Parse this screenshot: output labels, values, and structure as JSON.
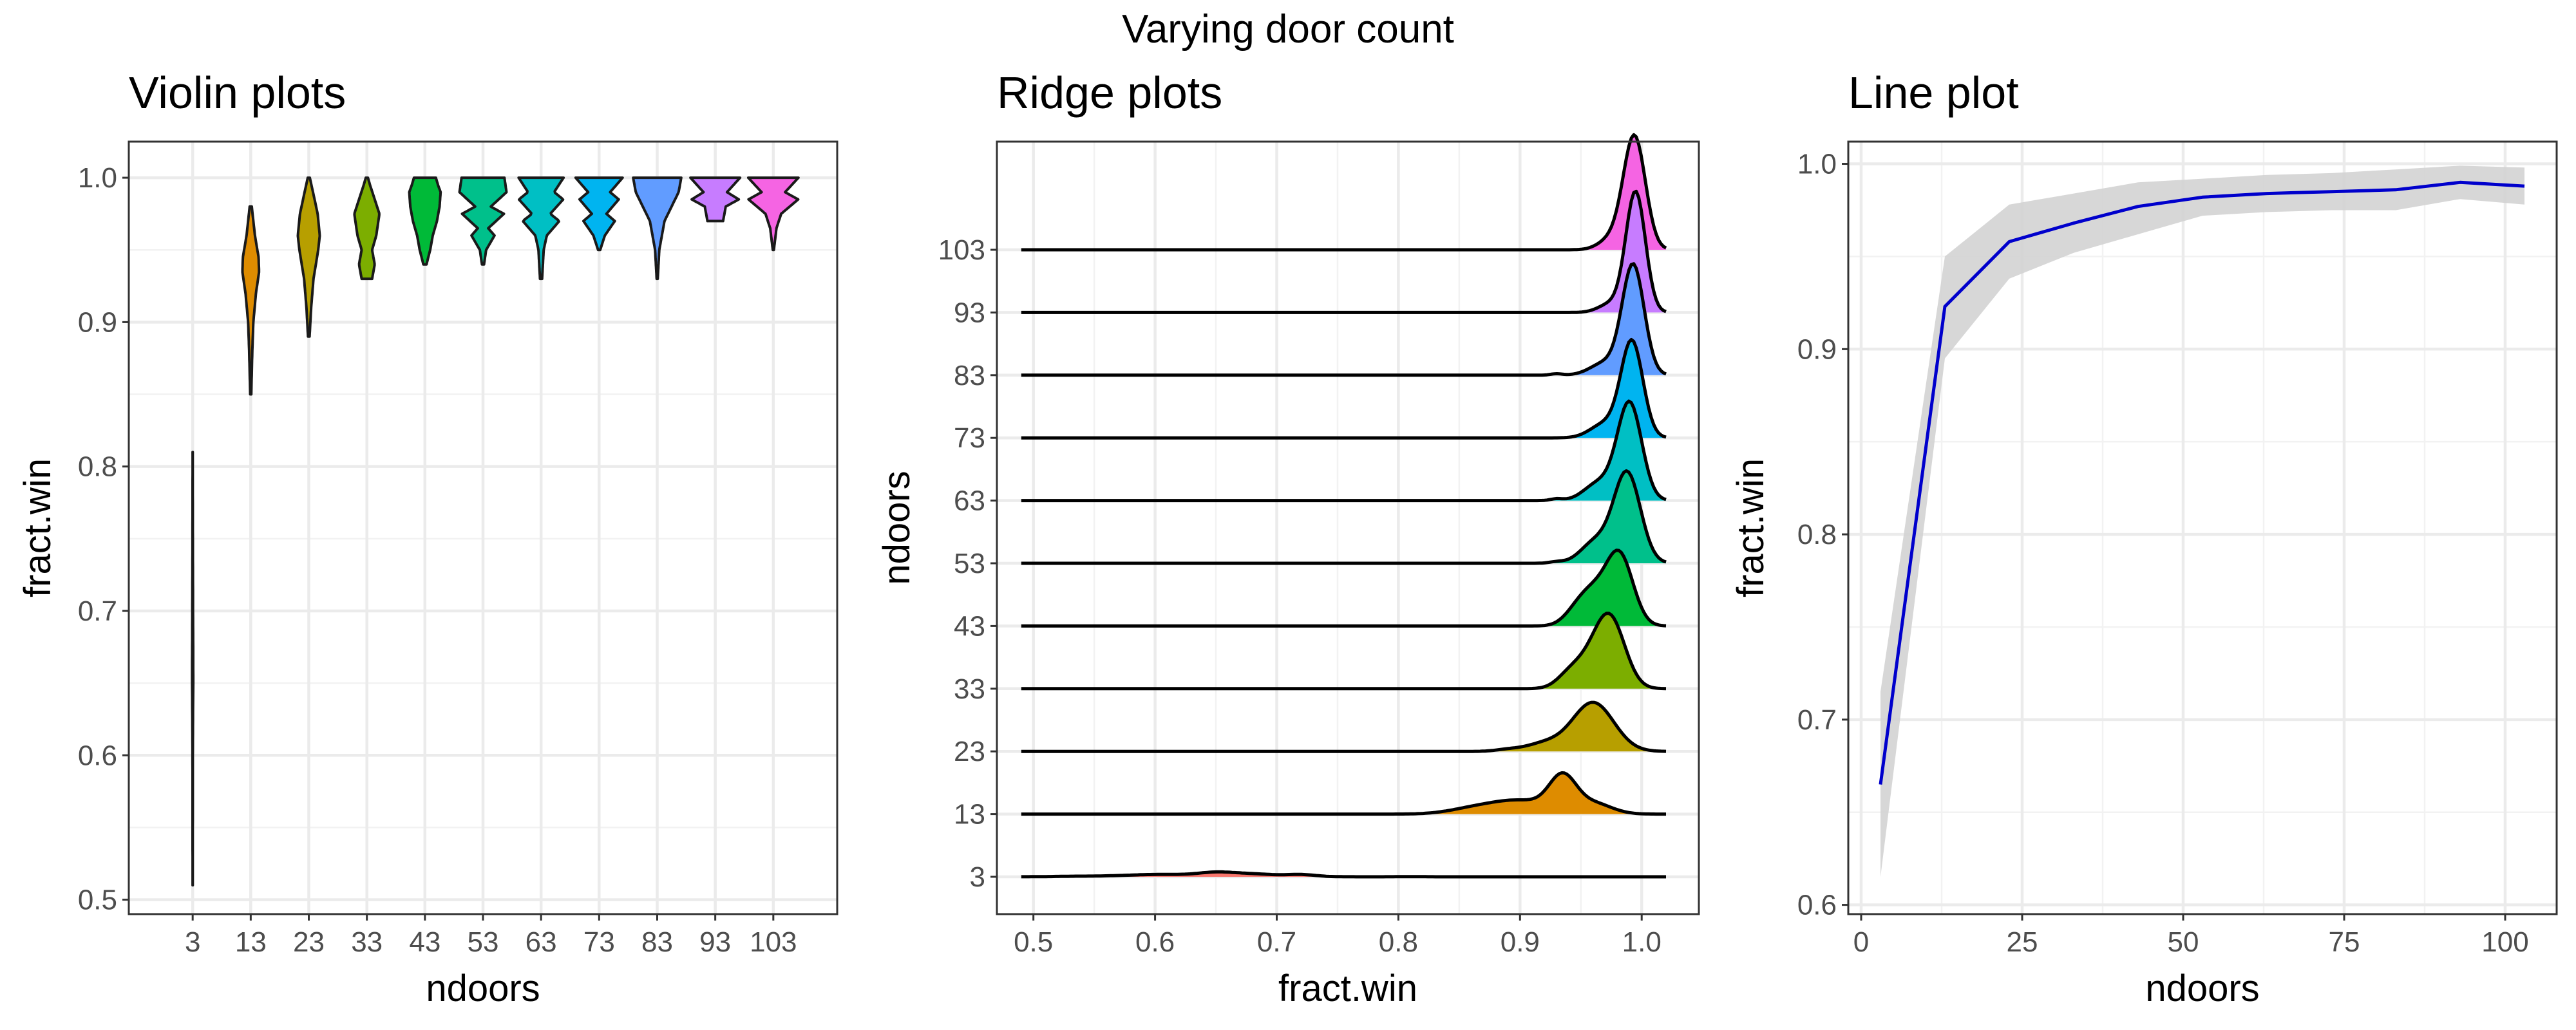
{
  "figure": {
    "title": "Varying door count",
    "panels": [
      {
        "title": "Violin plots",
        "xlabel": "ndoors",
        "ylabel": "fract.win"
      },
      {
        "title": "Ridge plots",
        "xlabel": "fract.win",
        "ylabel": "ndoors"
      },
      {
        "title": "Line plot",
        "xlabel": "ndoors",
        "ylabel": "fract.win"
      }
    ]
  },
  "chart_data": [
    {
      "type": "violin",
      "title": "Violin plots",
      "xlabel": "ndoors",
      "ylabel": "fract.win",
      "categories": [
        "3",
        "13",
        "23",
        "33",
        "43",
        "53",
        "63",
        "73",
        "83",
        "93",
        "103"
      ],
      "ylim": [
        0.49,
        1.025
      ],
      "yticks": [
        0.5,
        0.6,
        0.7,
        0.8,
        0.9,
        1.0
      ],
      "ytick_labels": [
        "0.5",
        "0.6",
        "0.7",
        "0.8",
        "0.9",
        "1.0"
      ],
      "colors": [
        "#F8766D",
        "#DE8C00",
        "#B79F00",
        "#7CAE00",
        "#00BA38",
        "#00C08B",
        "#00BFC4",
        "#00B4F0",
        "#619CFF",
        "#C77CFF",
        "#F564E3"
      ],
      "violins": [
        {
          "ndoors": "3",
          "min": 0.51,
          "max": 0.81,
          "profile": [
            [
              0.51,
              0.002
            ],
            [
              0.55,
              0.004
            ],
            [
              0.6,
              0.006
            ],
            [
              0.63,
              0.014
            ],
            [
              0.65,
              0.022
            ],
            [
              0.67,
              0.02
            ],
            [
              0.7,
              0.014
            ],
            [
              0.74,
              0.008
            ],
            [
              0.78,
              0.004
            ],
            [
              0.81,
              0.002
            ]
          ]
        },
        {
          "ndoors": "13",
          "min": 0.85,
          "max": 0.98,
          "profile": [
            [
              0.85,
              0.02
            ],
            [
              0.88,
              0.06
            ],
            [
              0.9,
              0.1
            ],
            [
              0.92,
              0.2
            ],
            [
              0.935,
              0.32
            ],
            [
              0.945,
              0.3
            ],
            [
              0.96,
              0.16
            ],
            [
              0.98,
              0.04
            ]
          ]
        },
        {
          "ndoors": "23",
          "min": 0.89,
          "max": 1.0,
          "profile": [
            [
              0.89,
              0.03
            ],
            [
              0.91,
              0.09
            ],
            [
              0.93,
              0.18
            ],
            [
              0.95,
              0.36
            ],
            [
              0.96,
              0.42
            ],
            [
              0.975,
              0.34
            ],
            [
              0.99,
              0.16
            ],
            [
              1.0,
              0.04
            ]
          ]
        },
        {
          "ndoors": "33",
          "min": 0.93,
          "max": 1.0,
          "profile": [
            [
              0.93,
              0.2
            ],
            [
              0.94,
              0.3
            ],
            [
              0.95,
              0.2
            ],
            [
              0.96,
              0.36
            ],
            [
              0.975,
              0.48
            ],
            [
              0.985,
              0.3
            ],
            [
              0.995,
              0.12
            ],
            [
              1.0,
              0.04
            ]
          ]
        },
        {
          "ndoors": "43",
          "min": 0.94,
          "max": 1.0,
          "profile": [
            [
              0.94,
              0.06
            ],
            [
              0.95,
              0.2
            ],
            [
              0.96,
              0.3
            ],
            [
              0.97,
              0.46
            ],
            [
              0.98,
              0.56
            ],
            [
              0.99,
              0.6
            ],
            [
              0.995,
              0.5
            ],
            [
              1.0,
              0.42
            ]
          ]
        },
        {
          "ndoors": "53",
          "min": 0.94,
          "max": 1.0,
          "profile": [
            [
              0.94,
              0.04
            ],
            [
              0.95,
              0.12
            ],
            [
              0.96,
              0.44
            ],
            [
              0.965,
              0.2
            ],
            [
              0.975,
              0.8
            ],
            [
              0.98,
              0.3
            ],
            [
              0.99,
              0.9
            ],
            [
              1.0,
              0.82
            ]
          ]
        },
        {
          "ndoors": "63",
          "min": 0.93,
          "max": 1.0,
          "profile": [
            [
              0.93,
              0.04
            ],
            [
              0.95,
              0.1
            ],
            [
              0.96,
              0.22
            ],
            [
              0.97,
              0.7
            ],
            [
              0.975,
              0.35
            ],
            [
              0.985,
              0.85
            ],
            [
              0.99,
              0.5
            ],
            [
              1.0,
              0.86
            ]
          ]
        },
        {
          "ndoors": "73",
          "min": 0.95,
          "max": 1.0,
          "profile": [
            [
              0.95,
              0.04
            ],
            [
              0.96,
              0.22
            ],
            [
              0.97,
              0.6
            ],
            [
              0.975,
              0.28
            ],
            [
              0.985,
              0.75
            ],
            [
              0.99,
              0.42
            ],
            [
              1.0,
              0.9
            ]
          ]
        },
        {
          "ndoors": "83",
          "min": 0.93,
          "max": 1.0,
          "profile": [
            [
              0.93,
              0.02
            ],
            [
              0.95,
              0.08
            ],
            [
              0.97,
              0.28
            ],
            [
              0.98,
              0.55
            ],
            [
              0.99,
              0.82
            ],
            [
              1.0,
              0.92
            ]
          ]
        },
        {
          "ndoors": "93",
          "min": 0.97,
          "max": 1.0,
          "profile": [
            [
              0.97,
              0.3
            ],
            [
              0.98,
              0.4
            ],
            [
              0.985,
              0.9
            ],
            [
              0.99,
              0.45
            ],
            [
              1.0,
              0.95
            ]
          ]
        },
        {
          "ndoors": "103",
          "min": 0.95,
          "max": 1.0,
          "profile": [
            [
              0.95,
              0.02
            ],
            [
              0.965,
              0.12
            ],
            [
              0.975,
              0.3
            ],
            [
              0.985,
              0.95
            ],
            [
              0.99,
              0.45
            ],
            [
              1.0,
              0.96
            ]
          ]
        }
      ]
    },
    {
      "type": "ridge",
      "title": "Ridge plots",
      "xlabel": "fract.win",
      "ylabel": "ndoors",
      "categories": [
        "3",
        "13",
        "23",
        "33",
        "43",
        "53",
        "63",
        "73",
        "83",
        "93",
        "103"
      ],
      "xlim": [
        0.47,
        1.047
      ],
      "xticks": [
        0.5,
        0.6,
        0.7,
        0.8,
        0.9,
        1.0
      ],
      "xtick_labels": [
        "0.5",
        "0.6",
        "0.7",
        "0.8",
        "0.9",
        "1.0"
      ],
      "baseline_range": [
        0.49,
        1.02
      ],
      "colors": [
        "#F8766D",
        "#DE8C00",
        "#B79F00",
        "#7CAE00",
        "#00BA38",
        "#00C08B",
        "#00BFC4",
        "#00B4F0",
        "#619CFF",
        "#C77CFF",
        "#F564E3"
      ],
      "ridges": [
        {
          "ndoors": "3",
          "peaks": [
            [
              0.62,
              0.05,
              0.05
            ],
            [
              0.65,
              0.08,
              0.014
            ],
            [
              0.68,
              0.06,
              0.018
            ],
            [
              0.72,
              0.055,
              0.012
            ],
            [
              0.6,
              0.02,
              0.02
            ],
            [
              0.81,
              0.006,
              0.01
            ],
            [
              0.53,
              0.006,
              0.012
            ]
          ]
        },
        {
          "ndoors": "13",
          "peaks": [
            [
              0.935,
              0.95,
              0.011
            ],
            [
              0.9,
              0.38,
              0.025
            ],
            [
              0.86,
              0.12,
              0.02
            ],
            [
              0.96,
              0.3,
              0.015
            ]
          ]
        },
        {
          "ndoors": "23",
          "peaks": [
            [
              0.96,
              1.38,
              0.017
            ],
            [
              0.92,
              0.22,
              0.015
            ],
            [
              0.89,
              0.05,
              0.01
            ]
          ]
        },
        {
          "ndoors": "33",
          "peaks": [
            [
              0.975,
              1.6,
              0.012
            ],
            [
              0.96,
              0.8,
              0.015
            ],
            [
              0.94,
              0.25,
              0.01
            ]
          ]
        },
        {
          "ndoors": "43",
          "peaks": [
            [
              0.982,
              1.95,
              0.011
            ],
            [
              0.96,
              0.9,
              0.012
            ],
            [
              0.945,
              0.25,
              0.01
            ]
          ]
        },
        {
          "ndoors": "53",
          "peaks": [
            [
              0.988,
              2.55,
              0.011
            ],
            [
              0.962,
              0.6,
              0.012
            ],
            [
              0.93,
              0.04,
              0.006
            ]
          ]
        },
        {
          "ndoors": "63",
          "peaks": [
            [
              0.99,
              2.75,
              0.01
            ],
            [
              0.965,
              0.5,
              0.012
            ],
            [
              0.93,
              0.05,
              0.005
            ]
          ]
        },
        {
          "ndoors": "73",
          "peaks": [
            [
              0.992,
              2.7,
              0.009
            ],
            [
              0.97,
              0.4,
              0.012
            ]
          ]
        },
        {
          "ndoors": "83",
          "peaks": [
            [
              0.993,
              3.1,
              0.009
            ],
            [
              0.97,
              0.35,
              0.012
            ],
            [
              0.93,
              0.04,
              0.005
            ]
          ]
        },
        {
          "ndoors": "93",
          "peaks": [
            [
              0.995,
              3.4,
              0.008
            ],
            [
              0.975,
              0.25,
              0.01
            ]
          ]
        },
        {
          "ndoors": "103",
          "peaks": [
            [
              0.994,
              3.2,
              0.009
            ],
            [
              0.975,
              0.3,
              0.01
            ]
          ]
        }
      ]
    },
    {
      "type": "line",
      "title": "Line plot",
      "xlabel": "ndoors",
      "ylabel": "fract.win",
      "xlim": [
        -2,
        108
      ],
      "ylim": [
        0.595,
        1.012
      ],
      "xticks": [
        0,
        25,
        50,
        75,
        100
      ],
      "xtick_labels": [
        "0",
        "25",
        "50",
        "75",
        "100"
      ],
      "yticks": [
        0.6,
        0.7,
        0.8,
        0.9,
        1.0
      ],
      "ytick_labels": [
        "0.6",
        "0.7",
        "0.8",
        "0.9",
        "1.0"
      ],
      "line_color": "#0000CC",
      "band_color": "#D3D3D3",
      "points": [
        {
          "x": 3,
          "y": 0.665,
          "lo": 0.615,
          "hi": 0.715
        },
        {
          "x": 13,
          "y": 0.923,
          "lo": 0.895,
          "hi": 0.95
        },
        {
          "x": 23,
          "y": 0.958,
          "lo": 0.938,
          "hi": 0.978
        },
        {
          "x": 33,
          "y": 0.968,
          "lo": 0.952,
          "hi": 0.984
        },
        {
          "x": 43,
          "y": 0.977,
          "lo": 0.962,
          "hi": 0.99
        },
        {
          "x": 53,
          "y": 0.982,
          "lo": 0.972,
          "hi": 0.992
        },
        {
          "x": 63,
          "y": 0.984,
          "lo": 0.974,
          "hi": 0.994
        },
        {
          "x": 73,
          "y": 0.985,
          "lo": 0.975,
          "hi": 0.995
        },
        {
          "x": 83,
          "y": 0.986,
          "lo": 0.975,
          "hi": 0.997
        },
        {
          "x": 93,
          "y": 0.99,
          "lo": 0.981,
          "hi": 0.999
        },
        {
          "x": 103,
          "y": 0.988,
          "lo": 0.978,
          "hi": 0.998
        }
      ]
    }
  ]
}
